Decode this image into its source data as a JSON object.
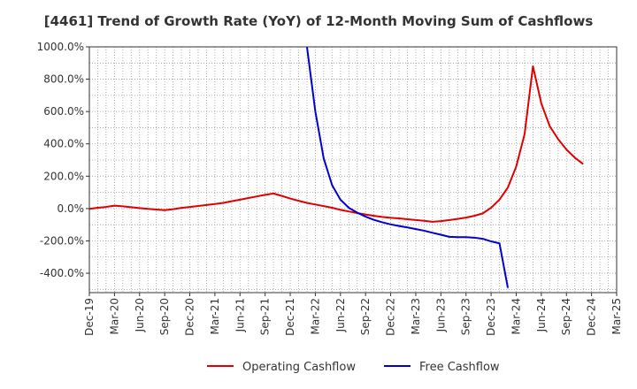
{
  "chart_data": {
    "type": "line",
    "title": "[4461]  Trend of Growth Rate (YoY) of 12-Month Moving Sum of Cashflows",
    "xlabel": "",
    "ylabel": "",
    "ylim": [
      -520,
      1000
    ],
    "grid": true,
    "legend_position": "bottom-center",
    "x_ticks": [
      "Dec-19",
      "Mar-20",
      "Jun-20",
      "Sep-20",
      "Dec-20",
      "Mar-21",
      "Jun-21",
      "Sep-21",
      "Dec-21",
      "Mar-22",
      "Jun-22",
      "Sep-22",
      "Dec-22",
      "Mar-23",
      "Jun-23",
      "Sep-23",
      "Dec-23",
      "Mar-24",
      "Jun-24",
      "Sep-24",
      "Dec-24",
      "Mar-25"
    ],
    "y_ticks": [
      {
        "value": 1000,
        "label": "1000.0%"
      },
      {
        "value": 800,
        "label": "800.0%"
      },
      {
        "value": 600,
        "label": "600.0%"
      },
      {
        "value": 400,
        "label": "400.0%"
      },
      {
        "value": 200,
        "label": "200.0%"
      },
      {
        "value": 0,
        "label": "0.0%"
      },
      {
        "value": -200,
        "label": "-200.0%"
      },
      {
        "value": -400,
        "label": "-400.0%"
      }
    ],
    "series": [
      {
        "name": "Operating Cashflow",
        "color": "#e00000",
        "points": [
          [
            0,
            -2
          ],
          [
            1,
            5
          ],
          [
            2,
            10
          ],
          [
            3,
            18
          ],
          [
            4,
            14
          ],
          [
            5,
            8
          ],
          [
            6,
            3
          ],
          [
            7,
            -2
          ],
          [
            8,
            -6
          ],
          [
            9,
            -10
          ],
          [
            10,
            -4
          ],
          [
            11,
            4
          ],
          [
            12,
            10
          ],
          [
            13,
            16
          ],
          [
            14,
            22
          ],
          [
            15,
            28
          ],
          [
            16,
            35
          ],
          [
            17,
            45
          ],
          [
            18,
            55
          ],
          [
            19,
            65
          ],
          [
            20,
            75
          ],
          [
            21,
            85
          ],
          [
            22,
            93
          ],
          [
            23,
            78
          ],
          [
            24,
            62
          ],
          [
            25,
            48
          ],
          [
            26,
            35
          ],
          [
            27,
            25
          ],
          [
            28,
            15
          ],
          [
            29,
            5
          ],
          [
            30,
            -8
          ],
          [
            31,
            -18
          ],
          [
            32,
            -28
          ],
          [
            33,
            -37
          ],
          [
            34,
            -45
          ],
          [
            35,
            -52
          ],
          [
            36,
            -57
          ],
          [
            37,
            -61
          ],
          [
            38,
            -66
          ],
          [
            39,
            -71
          ],
          [
            40,
            -76
          ],
          [
            41,
            -82
          ],
          [
            42,
            -78
          ],
          [
            43,
            -71
          ],
          [
            44,
            -64
          ],
          [
            45,
            -56
          ],
          [
            46,
            -45
          ],
          [
            47,
            -30
          ],
          [
            48,
            5
          ],
          [
            49,
            55
          ],
          [
            50,
            130
          ],
          [
            51,
            260
          ],
          [
            52,
            460
          ],
          [
            53,
            880
          ],
          [
            54,
            650
          ],
          [
            55,
            510
          ],
          [
            56,
            430
          ],
          [
            57,
            365
          ],
          [
            58,
            315
          ],
          [
            59,
            275
          ]
        ]
      },
      {
        "name": "Free Cashflow",
        "color": "#0000d0",
        "points": [
          [
            26,
            1000
          ],
          [
            27,
            600
          ],
          [
            28,
            310
          ],
          [
            29,
            145
          ],
          [
            30,
            55
          ],
          [
            31,
            5
          ],
          [
            32,
            -25
          ],
          [
            33,
            -50
          ],
          [
            34,
            -70
          ],
          [
            35,
            -85
          ],
          [
            36,
            -98
          ],
          [
            37,
            -108
          ],
          [
            38,
            -117
          ],
          [
            39,
            -127
          ],
          [
            40,
            -137
          ],
          [
            41,
            -150
          ],
          [
            42,
            -162
          ],
          [
            43,
            -175
          ],
          [
            44,
            -177
          ],
          [
            45,
            -177
          ],
          [
            46,
            -180
          ],
          [
            47,
            -187
          ],
          [
            48,
            -203
          ],
          [
            49,
            -215
          ],
          [
            50,
            -490
          ]
        ]
      }
    ]
  }
}
